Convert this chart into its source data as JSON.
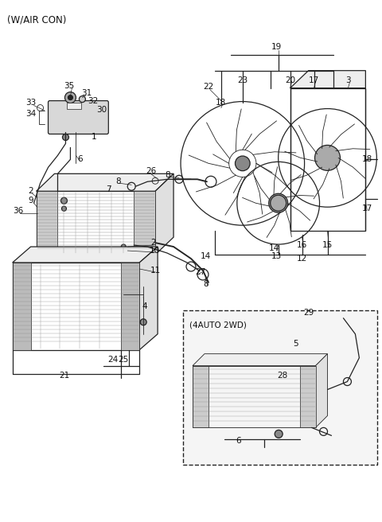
{
  "title": "(W/AIR CON)",
  "background_color": "#ffffff",
  "fig_width": 4.8,
  "fig_height": 6.56,
  "dpi": 100,
  "inset_label": "(4AUTO 2WD)"
}
